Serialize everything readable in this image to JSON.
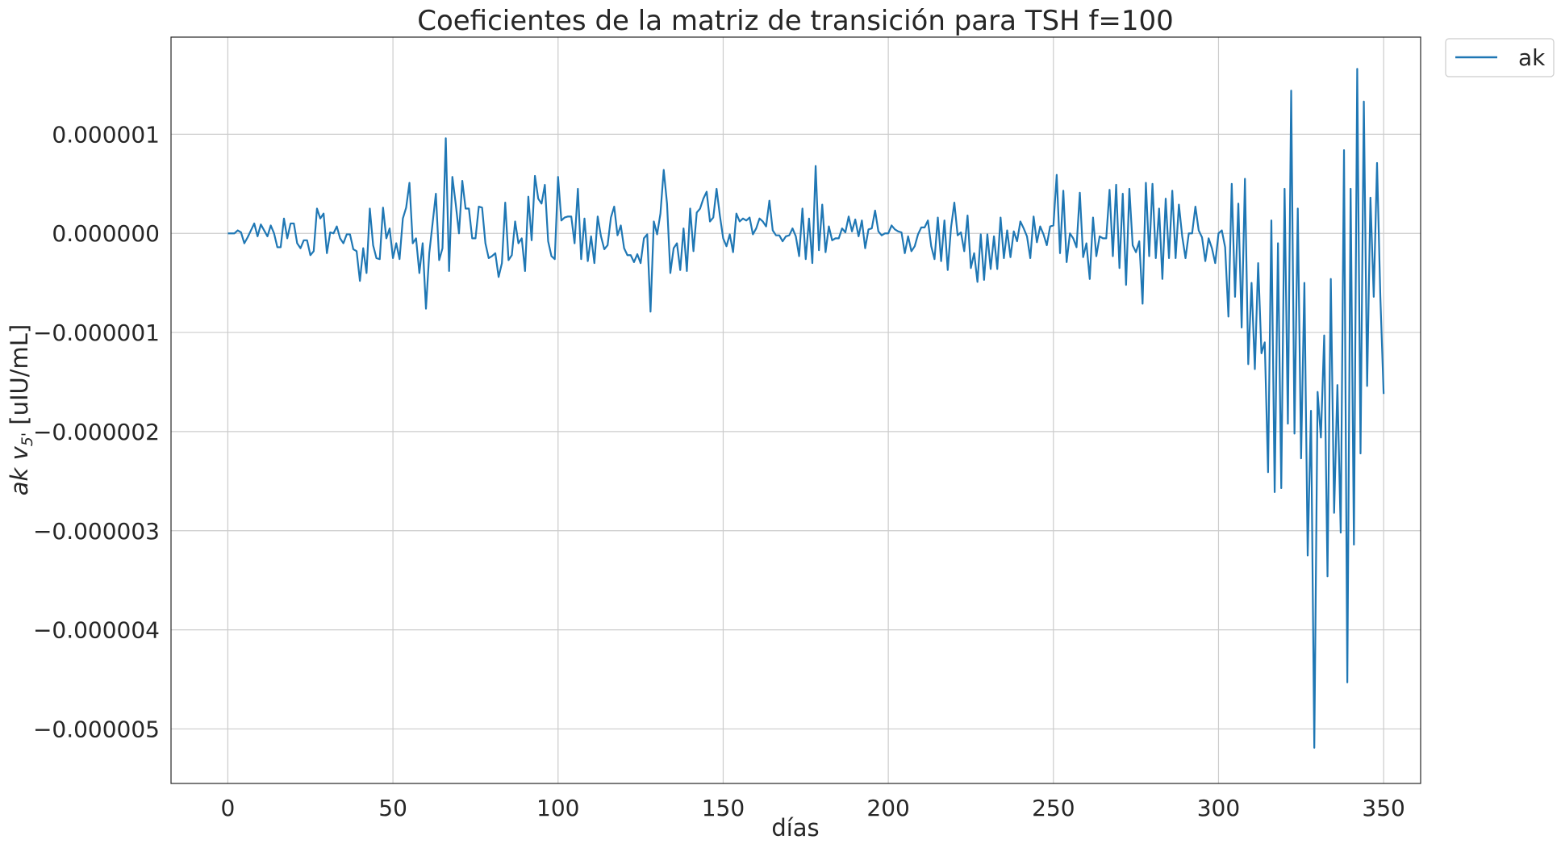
{
  "chart_data": {
    "type": "line",
    "title": "Coeficientes de la matriz de transición para TSH f=100",
    "xlabel": "días",
    "ylabel_italic": "ak v",
    "ylabel_subscript": "5'",
    "ylabel_units": " [uIU/mL]",
    "xlim": [
      -17.2,
      361.2
    ],
    "ylim": [
      -5.55e-06,
      1.98e-06
    ],
    "x_ticks": [
      0,
      50,
      100,
      150,
      200,
      250,
      300,
      350
    ],
    "x_tick_labels": [
      "0",
      "50",
      "100",
      "150",
      "200",
      "250",
      "300",
      "350"
    ],
    "y_ticks": [
      1e-06,
      0,
      -1e-06,
      -2e-06,
      -3e-06,
      -4e-06,
      -5e-06
    ],
    "y_tick_labels": [
      "0.000001",
      "0.000000",
      "−0.000001",
      "−0.000002",
      "−0.000003",
      "−0.000004",
      "−0.000005"
    ],
    "grid": true,
    "legend_position": "outside-top-right",
    "series": [
      {
        "name": "ak",
        "color": "#1f77b4",
        "x_start": 0,
        "x_step": 1,
        "y_scale": 1e-07,
        "values": [
          0,
          0,
          0,
          0.3,
          0.1,
          -1,
          -0.4,
          0.3,
          1,
          -0.3,
          0.9,
          0.3,
          -0.3,
          0.8,
          0,
          -1.4,
          -1.4,
          1.5,
          -0.5,
          1,
          1,
          -1,
          -1.5,
          -0.7,
          -0.7,
          -2.2,
          -1.8,
          2.5,
          1.5,
          2,
          -2,
          0.1,
          0,
          0.7,
          -0.5,
          -1,
          -0.1,
          -0.1,
          -1.6,
          -1.8,
          -4.8,
          -1.5,
          -4,
          2.5,
          -1.2,
          -2.5,
          -2.6,
          2.6,
          -0.5,
          0.5,
          -2.5,
          -1,
          -2.6,
          1.5,
          2.6,
          5.1,
          -1,
          -0.5,
          -4,
          -1,
          -7.6,
          -2,
          1,
          4,
          -2.7,
          -1.5,
          9.6,
          -3.8,
          5.7,
          3,
          0,
          5.3,
          2.5,
          2.5,
          -0.5,
          -0.5,
          2.7,
          2.6,
          -1,
          -2.5,
          -2.3,
          -2,
          -4.4,
          -3,
          3.1,
          -2.7,
          -2.2,
          1.2,
          -1,
          -0.5,
          -3.8,
          3.7,
          -0.7,
          5.8,
          3.5,
          3,
          4.9,
          -0.8,
          -2.3,
          -2.6,
          5.7,
          1.3,
          1.6,
          1.7,
          1.7,
          -1,
          4.5,
          -2.6,
          1.5,
          -2.8,
          -0.3,
          -3,
          1.7,
          -0.3,
          -1.6,
          -1.2,
          1.6,
          2.7,
          -0.2,
          0.8,
          -1.5,
          -2.2,
          -2.2,
          -2.9,
          -2.1,
          -3,
          -0.5,
          -0.1,
          -7.9,
          1.2,
          -0.1,
          2,
          6.4,
          3,
          -4,
          -1.5,
          -1,
          -3.7,
          0.5,
          -3.8,
          2.5,
          -1.8,
          2.1,
          2.5,
          3.5,
          4.2,
          1.2,
          1.6,
          4.5,
          1.8,
          -0.5,
          -1.3,
          -0.1,
          -1.9,
          2,
          1.2,
          1.5,
          1.3,
          1.6,
          -0.1,
          0.5,
          1.5,
          1.2,
          0.7,
          3.3,
          0.3,
          -0.2,
          -0.2,
          -0.8,
          -0.3,
          -0.2,
          0.5,
          -0.3,
          -2.3,
          2.5,
          -2.6,
          1.5,
          -3,
          6.8,
          -1.7,
          2.9,
          -1.9,
          0.7,
          -0.7,
          -0.5,
          -0.5,
          0.5,
          0.1,
          1.7,
          0.2,
          1.4,
          -0.3,
          1.3,
          -1.5,
          0.4,
          0.5,
          2.3,
          0.2,
          -0.2,
          0,
          0,
          0.8,
          0.4,
          0.2,
          0.1,
          -2,
          -0.3,
          -1.8,
          -1.3,
          -0.1,
          0.6,
          0.6,
          1.3,
          -1.3,
          -2.6,
          1.6,
          -2.8,
          1.3,
          -3.7,
          0.6,
          3.1,
          -0.2,
          0.1,
          -1.8,
          1.8,
          -3.5,
          -2,
          -4.9,
          -0.1,
          -4.7,
          -0.1,
          -3.6,
          -0.3,
          -3.6,
          1.6,
          -2.5,
          0.3,
          -2.4,
          0.2,
          -0.8,
          1.2,
          0.5,
          -0.3,
          -2.5,
          1.7,
          -0.9,
          0.7,
          -0.1,
          -1.2,
          0.7,
          0.8,
          5.9,
          -2,
          4.3,
          -2.9,
          0,
          -0.5,
          -1.4,
          4.1,
          -2.4,
          -1,
          -4.6,
          1.6,
          -2.3,
          -0.3,
          -0.5,
          -0.5,
          4.4,
          -2.3,
          4.9,
          -3.5,
          4,
          -5.2,
          4.5,
          -1.2,
          -1.9,
          -0.8,
          -7.1,
          5.1,
          -2.3,
          5,
          -2.5,
          2.5,
          -4.6,
          3.5,
          -2.5,
          4.3,
          -2.5,
          2.9,
          -0.3,
          -2.5,
          0,
          0,
          2.7,
          0.3,
          -0.4,
          -2.8,
          -0.5,
          -1.5,
          -3,
          0,
          0.3,
          -1.4,
          -8.4,
          5,
          -6.4,
          3,
          -9.5,
          5.5,
          -13.2,
          -5,
          -13.7,
          -3,
          -12.1,
          -11,
          -24.1,
          1.3,
          -26.1,
          -1,
          -25.7,
          4.5,
          -19.2,
          14.4,
          -20.2,
          2.5,
          -22.7,
          -5,
          -32.5,
          -17.9,
          -51.9,
          -16,
          -20.6,
          -10.3,
          -34.6,
          -4.6,
          -28.2,
          -15.3,
          -30.2,
          8.4,
          -45.3,
          4.5,
          -31.4,
          16.6,
          -22.2,
          13.3,
          -15.4,
          3.6,
          -6.4,
          7.1,
          -6.4,
          -16.2
        ]
      }
    ]
  }
}
